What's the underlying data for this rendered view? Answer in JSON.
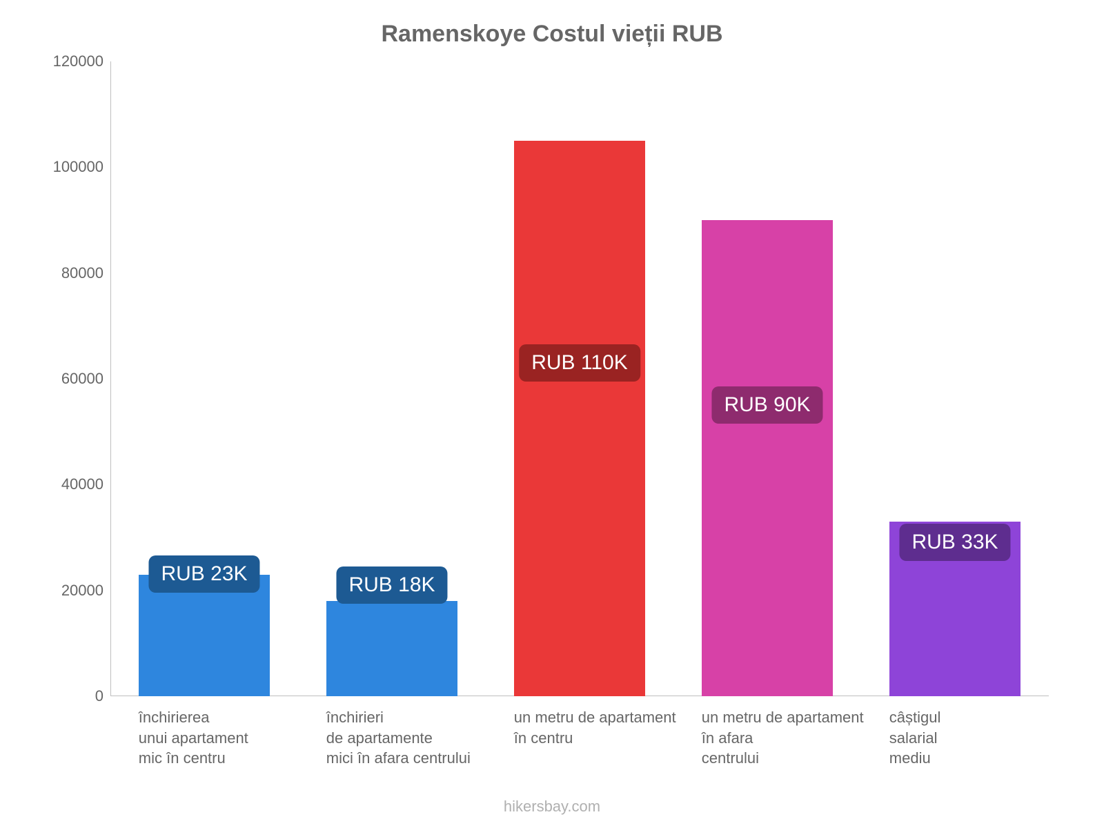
{
  "chart": {
    "type": "bar",
    "title": "Ramenskoye Costul vieții RUB",
    "title_color": "#666666",
    "title_fontsize": 34,
    "background_color": "#ffffff",
    "axis_color": "#bfbfbf",
    "tick_font_color": "#666666",
    "tick_fontsize": 22,
    "ylim": [
      0,
      120000
    ],
    "ytick_step": 20000,
    "yticks": [
      {
        "value": 0,
        "label": "0"
      },
      {
        "value": 20000,
        "label": "20000"
      },
      {
        "value": 40000,
        "label": "40000"
      },
      {
        "value": 60000,
        "label": "60000"
      },
      {
        "value": 80000,
        "label": "80000"
      },
      {
        "value": 100000,
        "label": "100000"
      },
      {
        "value": 120000,
        "label": "120000"
      }
    ],
    "bar_width_ratio": 0.72,
    "slot_positions_pct": [
      3,
      23,
      43,
      63,
      83
    ],
    "slot_width_pct": 14,
    "bars": [
      {
        "category_lines": "închirierea\nunui apartament\nmic în centru",
        "value": 23000,
        "color": "#2e86de",
        "badge_text": "RUB 23K",
        "badge_bg": "#1d5a93",
        "badge_y_value": 16000
      },
      {
        "category_lines": "închirieri\nde apartamente\nmici în afara centrului",
        "value": 18000,
        "color": "#2e86de",
        "badge_text": "RUB 18K",
        "badge_bg": "#1d5a93",
        "badge_y_value": 14000
      },
      {
        "category_lines": "un metru de apartament\nîn centru",
        "value": 105000,
        "color": "#ea3838",
        "badge_text": "RUB 110K",
        "badge_bg": "#9a2322",
        "badge_y_value": 56000
      },
      {
        "category_lines": "un metru de apartament\nîn afara\ncentrului",
        "value": 90000,
        "color": "#d741a7",
        "badge_text": "RUB 90K",
        "badge_bg": "#8e2b6e",
        "badge_y_value": 48000
      },
      {
        "category_lines": "câștigul\nsalarial\nmediu",
        "value": 33000,
        "color": "#8e44d8",
        "badge_text": "RUB 33K",
        "badge_bg": "#5e2d8f",
        "badge_y_value": 22000
      }
    ],
    "attribution": "hikersbay.com",
    "attribution_color": "#b0b0b0"
  }
}
